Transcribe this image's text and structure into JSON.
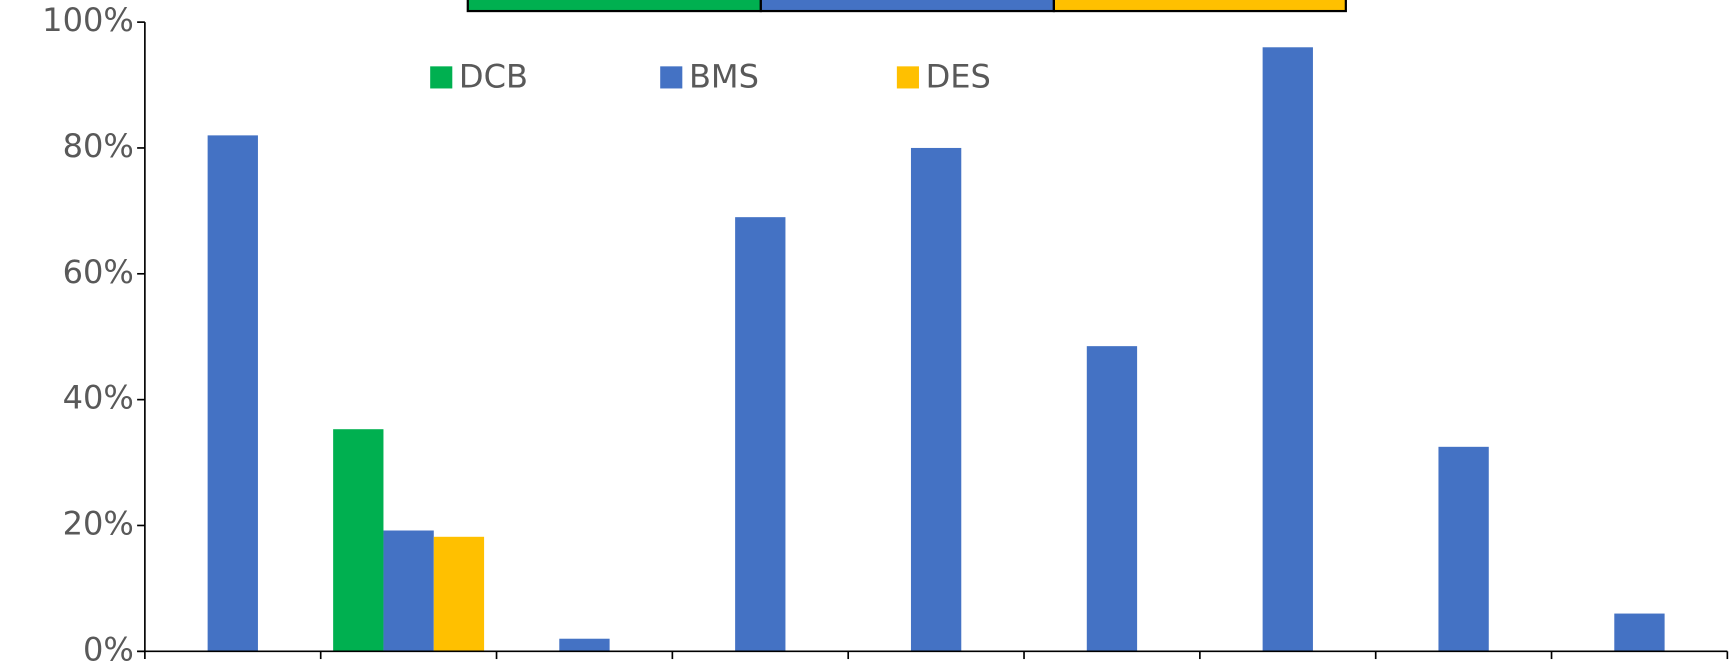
{
  "chart_data": {
    "type": "bar",
    "categories": [
      null,
      null,
      null,
      null,
      null,
      null,
      null,
      null,
      null
    ],
    "series": [
      {
        "name": "DCB",
        "color": "#00b050",
        "values": [
          null,
          35.3,
          null,
          null,
          null,
          null,
          null,
          null,
          null
        ]
      },
      {
        "name": "BMS",
        "color": "#4472c4",
        "values": [
          82,
          19.2,
          2,
          69,
          80,
          48.5,
          96,
          32.5,
          6
        ]
      },
      {
        "name": "DES",
        "color": "#ffc000",
        "values": [
          null,
          18.2,
          null,
          null,
          null,
          null,
          null,
          null,
          null
        ]
      }
    ],
    "ylim": [
      0,
      100
    ],
    "yticks": [
      {
        "value": 0,
        "label": "0%"
      },
      {
        "value": 20,
        "label": "20%"
      },
      {
        "value": 40,
        "label": "40%"
      },
      {
        "value": 60,
        "label": "60%"
      },
      {
        "value": 80,
        "label": "80%"
      },
      {
        "value": 100,
        "label": "100%"
      }
    ],
    "legend": "top"
  }
}
